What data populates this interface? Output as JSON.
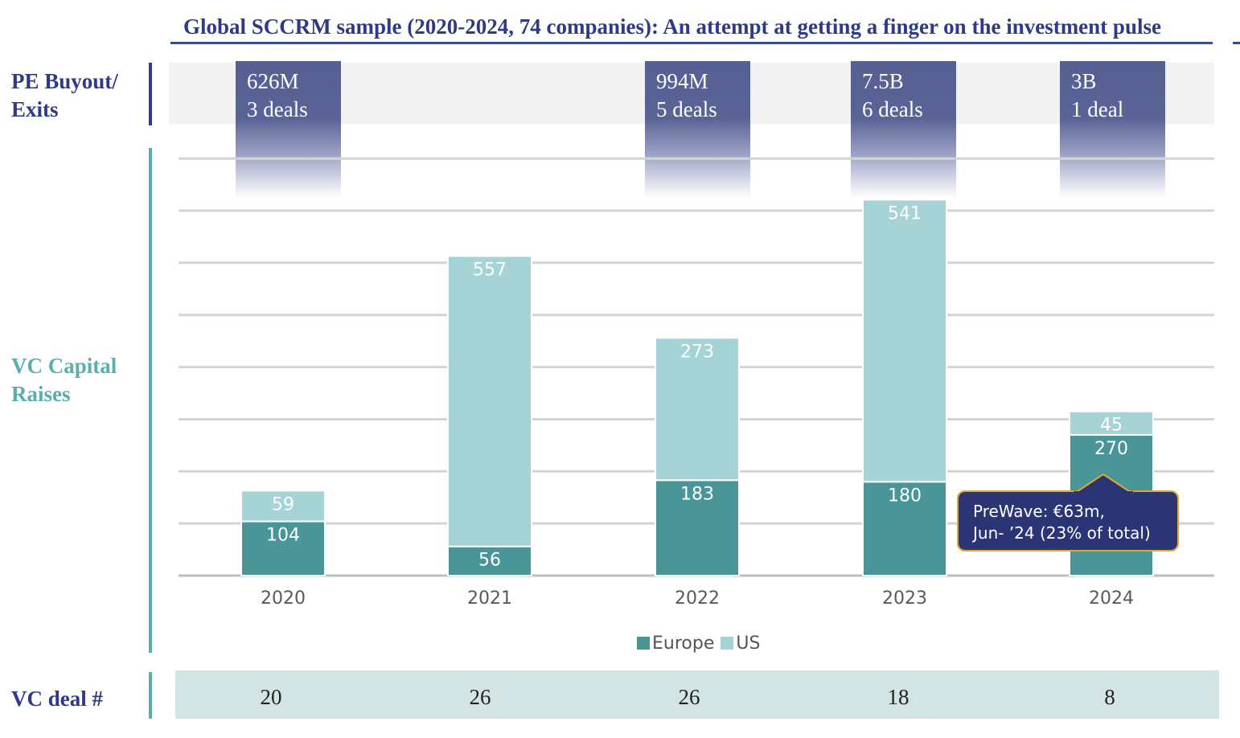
{
  "title": "Global SCCRM sample (2020-2024, 74 companies): An attempt at getting a finger on the investment pulse",
  "row_labels": {
    "pe": [
      "PE Buyout/",
      "Exits"
    ],
    "vc": [
      "VC Capital",
      "Raises"
    ],
    "deals": "VC deal #"
  },
  "pe_deals": [
    {
      "year": "2020",
      "value": "626M",
      "deals": "3 deals"
    },
    {
      "year": "2022",
      "value": "994M",
      "deals": "5 deals"
    },
    {
      "year": "2023",
      "value": "7.5B",
      "deals": "6 deals"
    },
    {
      "year": "2024",
      "value": "3B",
      "deals": "1 deal"
    }
  ],
  "callout": {
    "line1": "PreWave: €63m,",
    "line2": "Jun- ’24 (23% of total)"
  },
  "colors": {
    "europe": "#4a9598",
    "us": "#a6d4d6",
    "navy": "#2e3a87",
    "teal_label": "#5aaeb0"
  },
  "vc_deal_counts": [
    "20",
    "26",
    "26",
    "18",
    "8"
  ],
  "chart_data": {
    "type": "bar",
    "stacked": true,
    "categories": [
      "2020",
      "2021",
      "2022",
      "2023",
      "2024"
    ],
    "series": [
      {
        "name": "Europe",
        "values": [
          104,
          56,
          183,
          180,
          270
        ]
      },
      {
        "name": "US",
        "values": [
          59,
          557,
          273,
          541,
          45
        ]
      }
    ],
    "ylim": [
      0,
      800
    ],
    "grid": true,
    "legend": "bottom-center"
  }
}
